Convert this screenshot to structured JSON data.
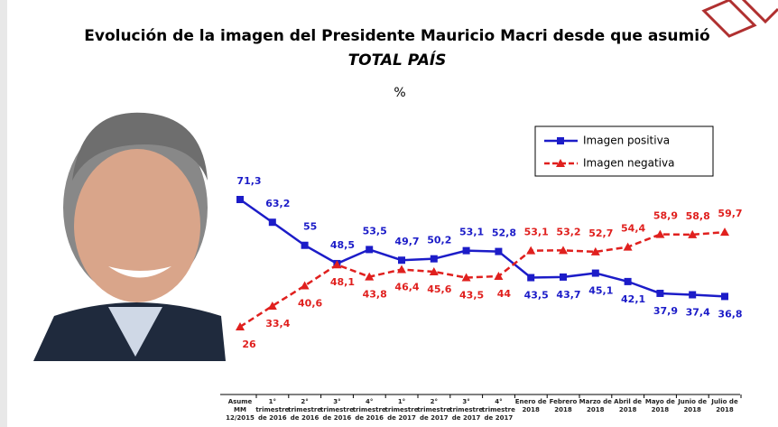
{
  "chart_data": {
    "type": "line",
    "title": "Evolución de la imagen del Presidente Mauricio Macri desde que asumió",
    "subtitle": "TOTAL PAÍS",
    "unit": "%",
    "categories": [
      "Asume\nMM\n12/2015",
      "1°\ntrimestre\nde 2016",
      "2°\ntrimestre\nde 2016",
      "3°\ntrimestre\nde 2016",
      "4°\ntrimestre\nde 2016",
      "1°\ntrimestre\nde 2017",
      "2°\ntrimestre\nde 2017",
      "3°\ntrimestre\nde 2017",
      "4°\ntrimestre\nde 2017",
      "Enero de\n2018",
      "Febrero\n2018",
      "Marzo de\n2018",
      "Abril de\n2018",
      "Mayo de\n2018",
      "Junio de\n2018",
      "Julio de\n2018"
    ],
    "series": [
      {
        "name": "Imagen positiva",
        "color": "#1c1cc8",
        "marker": "square",
        "dashed": false,
        "values": [
          71.3,
          63.2,
          55,
          48.5,
          53.5,
          49.7,
          50.2,
          53.1,
          52.8,
          43.5,
          43.7,
          45.1,
          42.1,
          37.9,
          37.4,
          36.8
        ],
        "value_labels": [
          "71,3",
          "63,2",
          "55",
          "48,5",
          "53,5",
          "49,7",
          "50,2",
          "53,1",
          "52,8",
          "43,5",
          "43,7",
          "45,1",
          "42,1",
          "37,9",
          "37,4",
          "36,8"
        ]
      },
      {
        "name": "Imagen negativa",
        "color": "#e0201e",
        "marker": "triangle",
        "dashed": true,
        "values": [
          26,
          33.4,
          40.6,
          48.1,
          43.8,
          46.4,
          45.6,
          43.5,
          44,
          53.1,
          53.2,
          52.7,
          54.4,
          58.9,
          58.8,
          59.7
        ],
        "value_labels": [
          "26",
          "33,4",
          "40,6",
          "48,1",
          "43,8",
          "46,4",
          "45,6",
          "43,5",
          "44",
          "53,1",
          "53,2",
          "52,7",
          "54,4",
          "58,9",
          "58,8",
          "59,7"
        ]
      }
    ]
  }
}
